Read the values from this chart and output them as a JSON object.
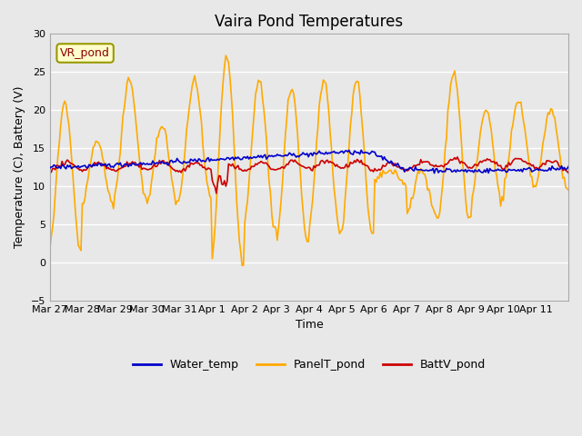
{
  "title": "Vaira Pond Temperatures",
  "xlabel": "Time",
  "ylabel": "Temperature (C), Battery (V)",
  "ylim": [
    -5,
    30
  ],
  "yticks": [
    -5,
    0,
    5,
    10,
    15,
    20,
    25,
    30
  ],
  "site_label": "VR_pond",
  "colors": {
    "water": "#0000cc",
    "panel": "#ffaa00",
    "batt": "#cc0000"
  },
  "legend_labels": [
    "Water_temp",
    "PanelT_pond",
    "BattV_pond"
  ],
  "bg_color": "#e8e8e8",
  "plot_bg": "#f0f0f0",
  "n_days": 16,
  "start_day": 0
}
